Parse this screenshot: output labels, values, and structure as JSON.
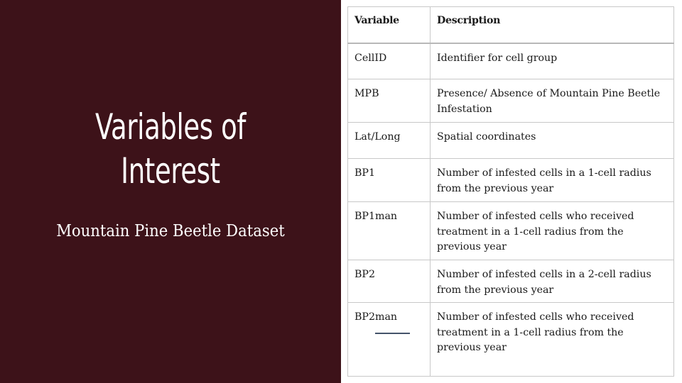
{
  "slide": {
    "title_line1": "Variables of",
    "title_line2": "Interest",
    "subtitle": "Mountain Pine Beetle Dataset"
  },
  "colors": {
    "panel_background": "#3d1219",
    "title_text": "#ffffff",
    "table_border": "#c8c8c8",
    "underline": "#44546a"
  },
  "table": {
    "headers": [
      "Variable",
      "Description"
    ],
    "rows": [
      {
        "variable": "CellID",
        "description": "Identifier for cell group"
      },
      {
        "variable": "MPB",
        "description": "Presence/ Absence of Mountain Pine Beetle Infestation"
      },
      {
        "variable": "Lat/Long",
        "description": "Spatial coordinates"
      },
      {
        "variable": "BP1",
        "description": "Number of infested cells in a 1-cell radius from the previous year"
      },
      {
        "variable": "BP1man",
        "description": "Number of infested cells who received treatment in a 1-cell radius from the previous year"
      },
      {
        "variable": "BP2",
        "description": "Number of infested cells in a 2-cell radius from the previous year"
      },
      {
        "variable": "BP2man",
        "description": "Number of infested cells who received treatment in a 1-cell radius from the previous year"
      }
    ]
  }
}
